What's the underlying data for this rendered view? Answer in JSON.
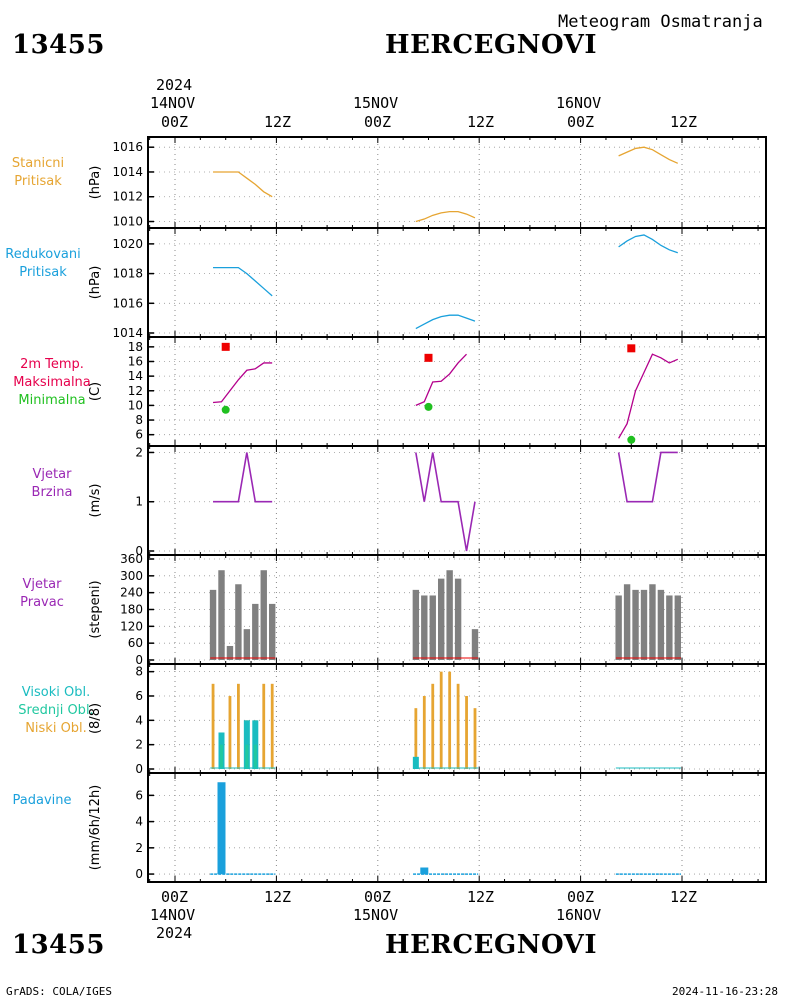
{
  "header": {
    "station_id": "13455",
    "station_name": "HERCEGNOVI",
    "subtitle": "Meteogram Osmatranja"
  },
  "footer": {
    "left": "GrADS: COLA/IGES",
    "right": "2024-11-16-23:28"
  },
  "time_axis": {
    "top_year": "2024",
    "bottom_year": "2024",
    "dates": [
      "14NOV",
      "15NOV",
      "16NOV"
    ],
    "hour_labels": [
      "00Z",
      "12Z"
    ]
  },
  "colors": {
    "stanicni": "#e6a532",
    "redukovani": "#1aa0dc",
    "maks": "#e6004c",
    "min": "#20c020",
    "temp_line": "#b4008c",
    "vjetar": "#9a28b4",
    "bar_grey": "#808080",
    "visoki": "#1abcc0",
    "srednji": "#20c8a0",
    "niski": "#e6a532",
    "padavine": "#1aa0dc",
    "red_marker": "#ee0000"
  },
  "panels": {
    "p1": {
      "labels": [
        "Stanicni",
        "Pritisak"
      ],
      "unit": "(hPa)"
    },
    "p2": {
      "labels": [
        "Redukovani",
        "Pritisak"
      ],
      "unit": "(hPa)"
    },
    "p3": {
      "labels": [
        "2m Temp.",
        "Maksimalna",
        "Minimalna"
      ],
      "unit": "(C)"
    },
    "p4": {
      "labels": [
        "Vjetar",
        "Brzina"
      ],
      "unit": "(m/s)"
    },
    "p5": {
      "labels": [
        "Vjetar",
        "Pravac"
      ],
      "unit": "(stepeni)"
    },
    "p6": {
      "labels": [
        "Visoki Obl.",
        "Srednji Obl.",
        "Niski Obl."
      ],
      "unit": "(8/8)"
    },
    "p7": {
      "labels": [
        "Padavine"
      ],
      "unit": "(mm/6h/12h)"
    }
  },
  "chart_data": [
    {
      "type": "line",
      "id": "stanicni_pritisak",
      "ylabel": "(hPa)",
      "ylim": [
        1009.8,
        1016.5
      ],
      "yticks": [
        1010,
        1012,
        1014,
        1016
      ],
      "x_unit": "hours since 14NOV 00Z",
      "series": [
        {
          "values": [
            [
              4.5,
              1014.0
            ],
            [
              5.5,
              1014.0
            ],
            [
              6.5,
              1014.0
            ],
            [
              7.5,
              1014.0
            ],
            [
              8.5,
              1013.5
            ],
            [
              9.5,
              1013.0
            ],
            [
              10.5,
              1012.4
            ],
            [
              11.5,
              1012.0
            ]
          ]
        },
        {
          "values": [
            [
              28.5,
              1010.0
            ],
            [
              29.5,
              1010.2
            ],
            [
              30.5,
              1010.5
            ],
            [
              31.5,
              1010.7
            ],
            [
              32.5,
              1010.8
            ],
            [
              33.5,
              1010.8
            ],
            [
              34.5,
              1010.6
            ],
            [
              35.5,
              1010.3
            ]
          ]
        },
        {
          "values": [
            [
              52.5,
              1015.3
            ],
            [
              53.5,
              1015.6
            ],
            [
              54.5,
              1015.9
            ],
            [
              55.5,
              1016.0
            ],
            [
              56.5,
              1015.8
            ],
            [
              57.5,
              1015.4
            ],
            [
              58.5,
              1015.0
            ],
            [
              59.5,
              1014.7
            ]
          ]
        }
      ]
    },
    {
      "type": "line",
      "id": "redukovani_pritisak",
      "ylabel": "(hPa)",
      "ylim": [
        1014.0,
        1020.8
      ],
      "yticks": [
        1014,
        1016,
        1018,
        1020
      ],
      "series": [
        {
          "values": [
            [
              4.5,
              1018.4
            ],
            [
              5.5,
              1018.4
            ],
            [
              6.5,
              1018.4
            ],
            [
              7.5,
              1018.4
            ],
            [
              8.5,
              1018.0
            ],
            [
              9.5,
              1017.5
            ],
            [
              10.5,
              1017.0
            ],
            [
              11.5,
              1016.5
            ]
          ]
        },
        {
          "values": [
            [
              28.5,
              1014.3
            ],
            [
              29.5,
              1014.6
            ],
            [
              30.5,
              1014.9
            ],
            [
              31.5,
              1015.1
            ],
            [
              32.5,
              1015.2
            ],
            [
              33.5,
              1015.2
            ],
            [
              34.5,
              1015.0
            ],
            [
              35.5,
              1014.8
            ]
          ]
        },
        {
          "values": [
            [
              52.5,
              1019.8
            ],
            [
              53.5,
              1020.2
            ],
            [
              54.5,
              1020.5
            ],
            [
              55.5,
              1020.6
            ],
            [
              56.5,
              1020.3
            ],
            [
              57.5,
              1019.9
            ],
            [
              58.5,
              1019.6
            ],
            [
              59.5,
              1019.4
            ]
          ]
        }
      ]
    },
    {
      "type": "line",
      "id": "temperatura",
      "ylabel": "(C)",
      "ylim": [
        5,
        18.8
      ],
      "yticks": [
        6,
        8,
        10,
        12,
        14,
        16,
        18
      ],
      "series": [
        {
          "values": [
            [
              4.5,
              10.4
            ],
            [
              5.5,
              10.5
            ],
            [
              6.5,
              12.0
            ],
            [
              7.5,
              13.5
            ],
            [
              8.5,
              14.8
            ],
            [
              9.5,
              15.0
            ],
            [
              10.5,
              15.8
            ],
            [
              11.5,
              15.8
            ]
          ]
        },
        {
          "values": [
            [
              28.5,
              10.0
            ],
            [
              29.5,
              10.5
            ],
            [
              30.5,
              13.2
            ],
            [
              31.5,
              13.3
            ],
            [
              32.5,
              14.3
            ],
            [
              33.5,
              15.8
            ],
            [
              34.5,
              17.0
            ]
          ]
        },
        {
          "values": [
            [
              52.5,
              5.5
            ],
            [
              53.5,
              7.5
            ],
            [
              54.5,
              12.0
            ],
            [
              55.5,
              14.5
            ],
            [
              56.5,
              17.0
            ],
            [
              57.5,
              16.5
            ],
            [
              58.5,
              15.8
            ],
            [
              59.5,
              16.3
            ]
          ]
        }
      ],
      "maksimalna": [
        [
          6,
          18.0
        ],
        [
          30,
          16.5
        ],
        [
          54,
          17.8
        ]
      ],
      "minimalna": [
        [
          6,
          9.4
        ],
        [
          30,
          9.8
        ],
        [
          54,
          5.3
        ]
      ]
    },
    {
      "type": "line",
      "id": "vjetar_brzina",
      "ylabel": "(m/s)",
      "ylim": [
        0,
        2.05
      ],
      "yticks": [
        0,
        1,
        2
      ],
      "series": [
        {
          "values": [
            [
              4.5,
              1
            ],
            [
              5.5,
              1
            ],
            [
              6.5,
              1
            ],
            [
              7.5,
              1
            ],
            [
              8.5,
              2
            ],
            [
              9.5,
              1
            ],
            [
              10.5,
              1
            ],
            [
              11.5,
              1
            ]
          ]
        },
        {
          "values": [
            [
              28.5,
              2
            ],
            [
              29.5,
              1
            ],
            [
              30.5,
              2
            ],
            [
              31.5,
              1
            ],
            [
              32.5,
              1
            ],
            [
              33.5,
              1
            ],
            [
              34.5,
              0
            ],
            [
              35.5,
              1
            ]
          ]
        },
        {
          "values": [
            [
              52.5,
              2
            ],
            [
              53.5,
              1
            ],
            [
              54.5,
              1
            ],
            [
              55.5,
              1
            ],
            [
              56.5,
              1
            ],
            [
              57.5,
              2
            ],
            [
              58.5,
              2
            ],
            [
              59.5,
              2
            ]
          ]
        }
      ]
    },
    {
      "type": "bar",
      "id": "vjetar_pravac",
      "ylabel": "(stepeni)",
      "ylim": [
        0,
        360
      ],
      "yticks": [
        0,
        60,
        120,
        180,
        240,
        300,
        360
      ],
      "values": [
        [
          5,
          250
        ],
        [
          6,
          320
        ],
        [
          7,
          50
        ],
        [
          8,
          270
        ],
        [
          9,
          110
        ],
        [
          10,
          200
        ],
        [
          11,
          320
        ],
        [
          12,
          200
        ],
        [
          29,
          250
        ],
        [
          30,
          230
        ],
        [
          31,
          230
        ],
        [
          32,
          290
        ],
        [
          33,
          320
        ],
        [
          34,
          290
        ],
        [
          35,
          0
        ],
        [
          36,
          110
        ],
        [
          53,
          230
        ],
        [
          54,
          270
        ],
        [
          55,
          250
        ],
        [
          56,
          250
        ],
        [
          57,
          270
        ],
        [
          58,
          250
        ],
        [
          59,
          230
        ],
        [
          60,
          230
        ]
      ]
    },
    {
      "type": "bar",
      "id": "oblacnost",
      "ylabel": "(8/8)",
      "ylim": [
        0,
        8.3
      ],
      "yticks": [
        0,
        2,
        4,
        6,
        8
      ],
      "series": [
        {
          "name": "Niski Obl.",
          "values": [
            [
              5,
              7
            ],
            [
              6,
              3
            ],
            [
              7,
              6
            ],
            [
              8,
              7
            ],
            [
              9,
              4
            ],
            [
              10,
              4
            ],
            [
              11,
              7
            ],
            [
              12,
              7
            ],
            [
              29,
              5
            ],
            [
              30,
              6
            ],
            [
              31,
              7
            ],
            [
              32,
              8
            ],
            [
              33,
              8
            ],
            [
              34,
              7
            ],
            [
              35,
              6
            ],
            [
              36,
              5
            ]
          ]
        },
        {
          "name": "Srednji Obl.",
          "values": [
            [
              6,
              2
            ],
            [
              9,
              2
            ],
            [
              10,
              2
            ]
          ]
        },
        {
          "name": "Visoki Obl.",
          "values": [
            [
              6,
              3
            ],
            [
              9,
              4
            ],
            [
              10,
              4
            ],
            [
              29,
              1
            ]
          ]
        }
      ]
    },
    {
      "type": "bar",
      "id": "padavine",
      "ylabel": "(mm/6h/12h)",
      "ylim": [
        -0.3,
        7.4
      ],
      "yticks": [
        0,
        2,
        4,
        6
      ],
      "values": [
        [
          6,
          7.0
        ],
        [
          30,
          0.5
        ]
      ]
    }
  ]
}
